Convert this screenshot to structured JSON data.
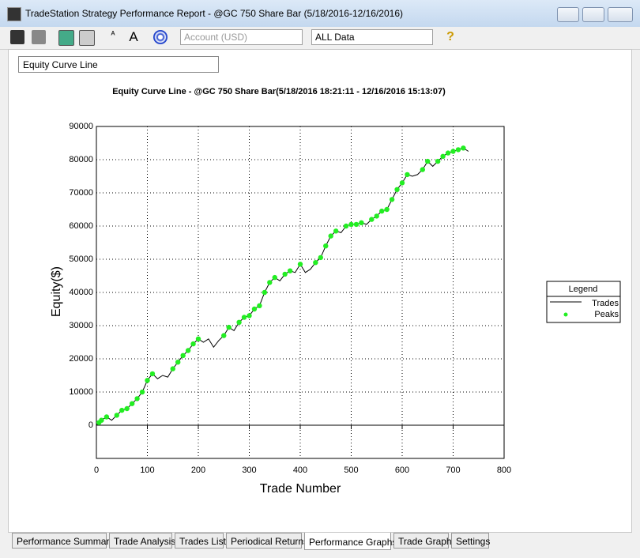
{
  "window": {
    "title": "TradeStation Strategy Performance Report - @GC 750 Share Bar (5/18/2016-12/16/2016)"
  },
  "toolbar": {
    "account": "Account (USD)",
    "range": "ALL Data"
  },
  "graph_selector": "Equity Curve Line",
  "tabs": [
    "Performance Summary",
    "Trade Analysis",
    "Trades List",
    "Periodical Returns",
    "Performance Graphs",
    "Trade Graphs",
    "Settings"
  ],
  "active_tab": "Performance Graphs",
  "chart_data": {
    "type": "line",
    "title": "Equity Curve Line - @GC 750 Share Bar(5/18/2016 18:21:11 - 12/16/2016 15:13:07)",
    "x_label": "Trade Number",
    "y_label": "Equity($)",
    "legend_title": "Legend",
    "legend": "right",
    "grid": true,
    "xlim": [
      0,
      800
    ],
    "xticks": [
      0,
      100,
      200,
      300,
      400,
      500,
      600,
      700,
      800
    ],
    "ylim": [
      -10000,
      90000
    ],
    "yticks": [
      0,
      10000,
      20000,
      30000,
      40000,
      50000,
      60000,
      70000,
      80000,
      90000
    ],
    "series": [
      {
        "name": "Trades",
        "color": "#000000",
        "mode": "line",
        "x": [
          0,
          10,
          20,
          30,
          40,
          50,
          60,
          70,
          80,
          90,
          100,
          110,
          120,
          130,
          140,
          150,
          160,
          170,
          180,
          190,
          200,
          210,
          220,
          230,
          240,
          250,
          260,
          270,
          280,
          290,
          300,
          310,
          320,
          330,
          340,
          350,
          360,
          370,
          380,
          390,
          400,
          410,
          420,
          430,
          440,
          450,
          460,
          470,
          480,
          490,
          500,
          510,
          520,
          530,
          540,
          550,
          560,
          570,
          580,
          590,
          600,
          610,
          620,
          630,
          640,
          650,
          660,
          670,
          680,
          690,
          700,
          710,
          720,
          730
        ],
        "values": [
          0,
          1500,
          2500,
          1500,
          3000,
          4500,
          5000,
          6500,
          8000,
          10000,
          13500,
          15500,
          14000,
          15000,
          14500,
          17000,
          19000,
          21000,
          22500,
          24500,
          26000,
          25000,
          26000,
          23500,
          25500,
          27000,
          29500,
          28500,
          31000,
          32500,
          33000,
          35000,
          36000,
          40000,
          43000,
          44500,
          43500,
          45500,
          46500,
          46000,
          48500,
          46000,
          47000,
          49000,
          50500,
          54000,
          57000,
          58500,
          58000,
          60000,
          60500,
          60500,
          61000,
          60500,
          62000,
          63000,
          64500,
          65000,
          68000,
          71000,
          73000,
          75500,
          75000,
          75500,
          77000,
          79500,
          78000,
          79500,
          81000,
          82000,
          82500,
          83000,
          83500,
          82500
        ]
      },
      {
        "name": "Peaks",
        "color": "#22ee22",
        "mode": "points",
        "x": [
          5,
          10,
          20,
          40,
          50,
          60,
          70,
          80,
          90,
          100,
          110,
          150,
          160,
          170,
          180,
          190,
          200,
          250,
          260,
          280,
          290,
          300,
          310,
          320,
          330,
          340,
          350,
          370,
          380,
          400,
          430,
          440,
          450,
          460,
          470,
          490,
          500,
          510,
          520,
          540,
          550,
          560,
          570,
          580,
          590,
          600,
          610,
          640,
          650,
          670,
          680,
          690,
          700,
          710,
          720
        ],
        "values": [
          800,
          1500,
          2500,
          3000,
          4500,
          5000,
          6500,
          8000,
          10000,
          13500,
          15500,
          17000,
          19000,
          21000,
          22500,
          24500,
          26000,
          27000,
          29500,
          31000,
          32500,
          33000,
          35000,
          36000,
          40000,
          43000,
          44500,
          45500,
          46500,
          48500,
          49000,
          50500,
          54000,
          57000,
          58500,
          60000,
          60500,
          60500,
          61000,
          62000,
          63000,
          64500,
          65000,
          68000,
          71000,
          73000,
          75500,
          77000,
          79500,
          79500,
          81000,
          82000,
          82500,
          83000,
          83500
        ]
      }
    ]
  }
}
